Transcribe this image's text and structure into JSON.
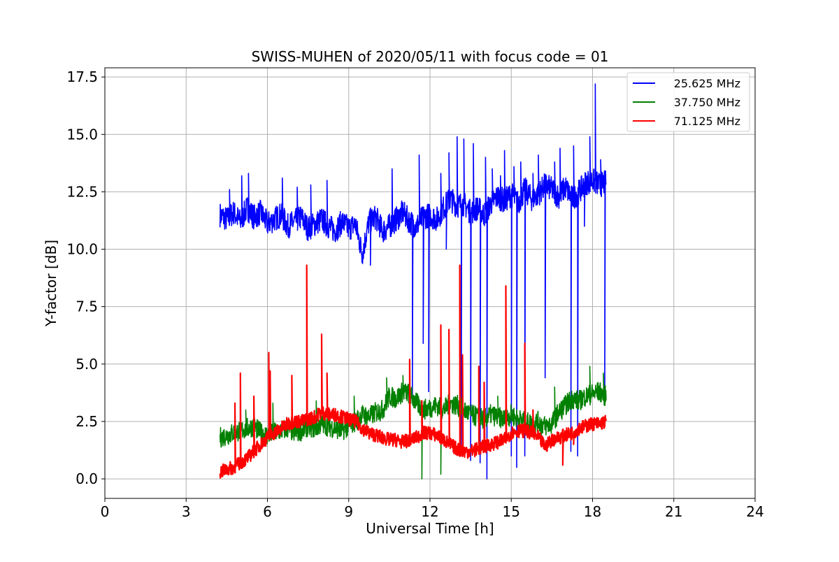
{
  "chart_data": {
    "type": "line",
    "title": "SWISS-MUHEN of 2020/05/11 with focus code = 01",
    "xlabel": "Universal Time [h]",
    "ylabel": "Y-factor [dB]",
    "xlim": [
      0,
      24
    ],
    "ylim": [
      -0.85,
      17.9
    ],
    "xticks": [
      0,
      3,
      6,
      9,
      12,
      15,
      18,
      21,
      24
    ],
    "yticks": [
      0.0,
      2.5,
      5.0,
      7.5,
      10.0,
      12.5,
      15.0,
      17.5
    ],
    "xtick_labels": [
      "0",
      "3",
      "6",
      "9",
      "12",
      "15",
      "18",
      "21",
      "24"
    ],
    "ytick_labels": [
      "0.0",
      "2.5",
      "5.0",
      "7.5",
      "10.0",
      "12.5",
      "15.0",
      "17.5"
    ],
    "grid": true,
    "legend_position": "top-right",
    "series": [
      {
        "name": "25.625 MHz",
        "color": "#0000ff",
        "x": [
          4.25,
          4.5,
          4.75,
          5.0,
          5.25,
          5.5,
          5.75,
          6.0,
          6.25,
          6.5,
          6.75,
          7.0,
          7.25,
          7.5,
          7.75,
          8.0,
          8.25,
          8.5,
          8.75,
          9.0,
          9.25,
          9.5,
          9.75,
          10.0,
          10.25,
          10.5,
          10.75,
          11.0,
          11.25,
          11.5,
          11.75,
          12.0,
          12.25,
          12.5,
          12.75,
          13.0,
          13.25,
          13.5,
          13.75,
          14.0,
          14.25,
          14.5,
          14.75,
          15.0,
          15.25,
          15.5,
          15.75,
          16.0,
          16.25,
          16.5,
          16.75,
          17.0,
          17.25,
          17.5,
          17.75,
          18.0,
          18.25,
          18.5
        ],
        "y": [
          11.5,
          11.3,
          11.6,
          11.2,
          11.8,
          11.4,
          11.6,
          11.1,
          11.3,
          11.5,
          11.0,
          11.2,
          11.4,
          10.9,
          11.1,
          11.3,
          11.0,
          10.8,
          11.2,
          10.9,
          11.1,
          9.8,
          11.2,
          11.4,
          10.8,
          11.0,
          11.3,
          11.6,
          11.2,
          11.0,
          11.4,
          11.5,
          11.3,
          11.8,
          12.2,
          11.9,
          12.0,
          11.6,
          11.8,
          11.5,
          12.0,
          12.3,
          12.1,
          12.4,
          12.0,
          12.6,
          12.2,
          12.4,
          12.8,
          12.6,
          12.3,
          12.7,
          12.2,
          12.5,
          12.9,
          13.0,
          12.8,
          12.9
        ],
        "spikes": [
          [
            4.6,
            12.6
          ],
          [
            5.05,
            13.2
          ],
          [
            5.3,
            13.3
          ],
          [
            6.55,
            13.1
          ],
          [
            7.1,
            12.7
          ],
          [
            7.6,
            12.8
          ],
          [
            8.2,
            13.0
          ],
          [
            9.8,
            9.3
          ],
          [
            10.6,
            13.5
          ],
          [
            11.35,
            3.6
          ],
          [
            11.6,
            14.1
          ],
          [
            11.75,
            5.9
          ],
          [
            11.95,
            3.8
          ],
          [
            12.4,
            13.3
          ],
          [
            12.6,
            10.0
          ],
          [
            12.7,
            14.2
          ],
          [
            13.0,
            14.9
          ],
          [
            13.15,
            1.0
          ],
          [
            13.25,
            14.8
          ],
          [
            13.5,
            0.8
          ],
          [
            13.6,
            14.6
          ],
          [
            13.85,
            0.7
          ],
          [
            14.05,
            14.0
          ],
          [
            14.1,
            0.0
          ],
          [
            14.3,
            13.5
          ],
          [
            14.6,
            13.2
          ],
          [
            14.75,
            14.3
          ],
          [
            15.0,
            1.0
          ],
          [
            15.1,
            13.6
          ],
          [
            15.2,
            0.5
          ],
          [
            15.35,
            13.8
          ],
          [
            15.5,
            1.0
          ],
          [
            15.8,
            13.3
          ],
          [
            16.0,
            14.1
          ],
          [
            16.25,
            4.4
          ],
          [
            16.6,
            13.8
          ],
          [
            16.8,
            14.4
          ],
          [
            17.2,
            1.2
          ],
          [
            17.3,
            14.5
          ],
          [
            17.45,
            1.0
          ],
          [
            17.7,
            11.0
          ],
          [
            17.9,
            14.9
          ],
          [
            18.1,
            17.2
          ],
          [
            18.3,
            13.9
          ],
          [
            18.45,
            3.2
          ]
        ]
      },
      {
        "name": "37.750 MHz",
        "color": "#008000",
        "x": [
          4.25,
          4.5,
          4.75,
          5.0,
          5.25,
          5.5,
          5.75,
          6.0,
          6.25,
          6.5,
          6.75,
          7.0,
          7.25,
          7.5,
          7.75,
          8.0,
          8.25,
          8.5,
          8.75,
          9.0,
          9.25,
          9.5,
          9.75,
          10.0,
          10.25,
          10.5,
          10.75,
          11.0,
          11.25,
          11.5,
          11.75,
          12.0,
          12.25,
          12.5,
          12.75,
          13.0,
          13.25,
          13.5,
          13.75,
          14.0,
          14.25,
          14.5,
          14.75,
          15.0,
          15.25,
          15.5,
          15.75,
          16.0,
          16.25,
          16.5,
          16.75,
          17.0,
          17.25,
          17.5,
          17.75,
          18.0,
          18.25,
          18.5
        ],
        "y": [
          1.8,
          1.9,
          2.0,
          2.1,
          2.2,
          2.3,
          2.0,
          1.9,
          2.0,
          2.1,
          2.2,
          2.0,
          2.1,
          2.3,
          2.2,
          2.4,
          2.3,
          2.2,
          2.1,
          2.3,
          2.5,
          2.8,
          2.7,
          2.9,
          3.0,
          3.6,
          3.5,
          3.8,
          3.7,
          3.3,
          3.0,
          3.1,
          3.2,
          3.0,
          3.3,
          3.2,
          3.0,
          2.8,
          2.7,
          2.6,
          2.8,
          2.7,
          2.6,
          2.8,
          2.6,
          2.5,
          2.4,
          2.5,
          2.3,
          2.4,
          2.9,
          3.2,
          3.5,
          3.4,
          3.6,
          3.7,
          3.8,
          3.6
        ],
        "spikes": [
          [
            5.2,
            3.0
          ],
          [
            6.2,
            3.3
          ],
          [
            7.8,
            3.4
          ],
          [
            9.2,
            3.6
          ],
          [
            10.4,
            4.4
          ],
          [
            11.0,
            4.5
          ],
          [
            11.7,
            0.0
          ],
          [
            12.4,
            0.2
          ],
          [
            14.5,
            3.6
          ],
          [
            16.1,
            1.5
          ],
          [
            16.6,
            4.0
          ],
          [
            17.9,
            4.9
          ],
          [
            18.4,
            4.6
          ]
        ]
      },
      {
        "name": "71.125 MHz",
        "color": "#ff0000",
        "x": [
          4.25,
          4.5,
          4.75,
          5.0,
          5.25,
          5.5,
          5.75,
          6.0,
          6.25,
          6.5,
          6.75,
          7.0,
          7.25,
          7.5,
          7.75,
          8.0,
          8.25,
          8.5,
          8.75,
          9.0,
          9.25,
          9.5,
          9.75,
          10.0,
          10.25,
          10.5,
          10.75,
          11.0,
          11.25,
          11.5,
          11.75,
          12.0,
          12.25,
          12.5,
          12.75,
          13.0,
          13.25,
          13.5,
          13.75,
          14.0,
          14.25,
          14.5,
          14.75,
          15.0,
          15.25,
          15.5,
          15.75,
          16.0,
          16.25,
          16.5,
          16.75,
          17.0,
          17.25,
          17.5,
          17.75,
          18.0,
          18.25,
          18.5
        ],
        "y": [
          0.3,
          0.4,
          0.5,
          0.7,
          0.9,
          1.2,
          1.5,
          1.8,
          2.0,
          2.2,
          2.4,
          2.5,
          2.5,
          2.6,
          2.7,
          2.9,
          2.8,
          2.8,
          2.7,
          2.6,
          2.5,
          2.2,
          2.0,
          1.9,
          1.8,
          1.7,
          1.7,
          1.6,
          1.7,
          1.8,
          2.0,
          2.0,
          1.9,
          1.7,
          1.5,
          1.3,
          1.2,
          1.2,
          1.3,
          1.4,
          1.5,
          1.6,
          1.7,
          2.0,
          2.1,
          2.1,
          2.0,
          1.8,
          1.4,
          1.7,
          1.8,
          1.9,
          2.0,
          2.2,
          2.3,
          2.4,
          2.4,
          2.5
        ],
        "spikes": [
          [
            4.8,
            3.3
          ],
          [
            5.0,
            4.6
          ],
          [
            5.5,
            3.6
          ],
          [
            6.05,
            5.5
          ],
          [
            6.1,
            4.7
          ],
          [
            6.9,
            4.5
          ],
          [
            7.45,
            9.3
          ],
          [
            8.0,
            6.3
          ],
          [
            8.2,
            4.6
          ],
          [
            11.25,
            5.2
          ],
          [
            11.7,
            3.4
          ],
          [
            12.4,
            6.7
          ],
          [
            12.7,
            6.5
          ],
          [
            13.1,
            9.3
          ],
          [
            13.2,
            5.4
          ],
          [
            13.8,
            4.9
          ],
          [
            14.0,
            4.2
          ],
          [
            14.8,
            8.4
          ],
          [
            15.5,
            5.9
          ],
          [
            15.8,
            3.0
          ],
          [
            16.9,
            0.6
          ],
          [
            17.3,
            1.5
          ]
        ]
      }
    ]
  }
}
